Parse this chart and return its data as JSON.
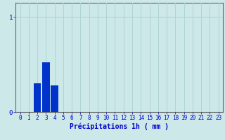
{
  "x_values": [
    0,
    1,
    2,
    3,
    4,
    5,
    6,
    7,
    8,
    9,
    10,
    11,
    12,
    13,
    14,
    15,
    16,
    17,
    18,
    19,
    20,
    21,
    22,
    23
  ],
  "bar_values": [
    0,
    0,
    0.3,
    0.52,
    0.28,
    0,
    0,
    0,
    0,
    0,
    0,
    0,
    0,
    0,
    0,
    0,
    0,
    0,
    0,
    0,
    0,
    0,
    0,
    0
  ],
  "bar_color": "#0033cc",
  "background_color": "#cce8e8",
  "grid_color": "#b0d4d4",
  "axis_color": "#666666",
  "xlabel": "Précipitations 1h ( mm )",
  "xlabel_color": "#0000cc",
  "xlabel_fontsize": 7,
  "tick_color": "#0000cc",
  "tick_fontsize": 5.5,
  "ytick_labels": [
    "0",
    "1"
  ],
  "ytick_values": [
    0,
    1
  ],
  "ylim": [
    0,
    1.15
  ],
  "xlim": [
    -0.5,
    23.5
  ]
}
